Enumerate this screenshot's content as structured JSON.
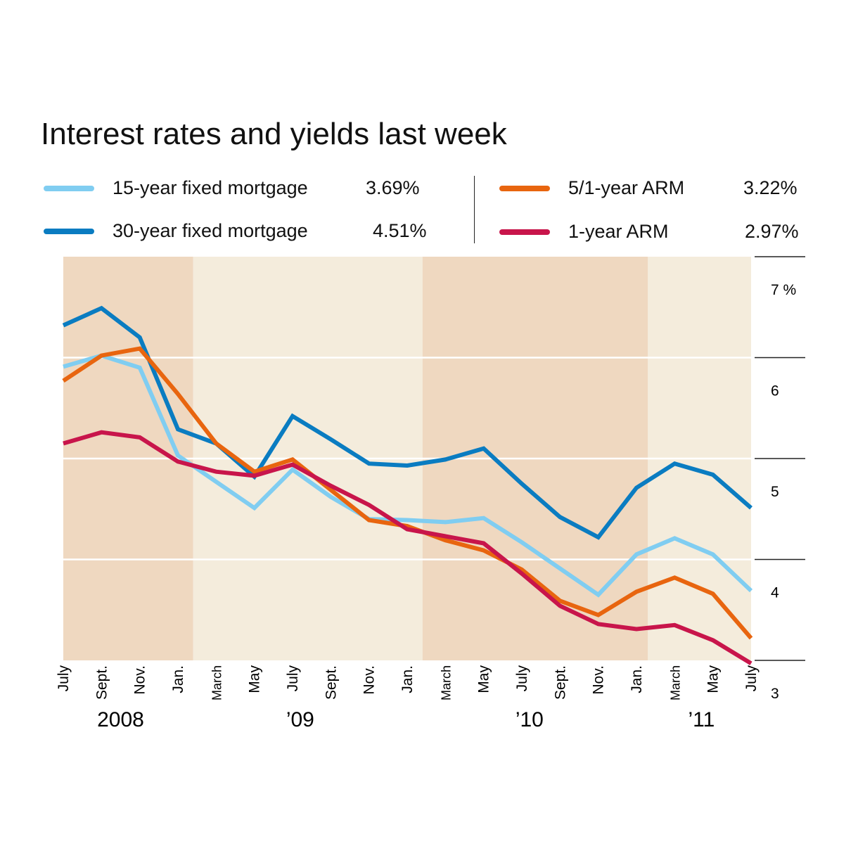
{
  "chart_data": {
    "type": "line",
    "title": "Interest rates and yields last week",
    "xlabel": "",
    "ylabel": "",
    "ylim": [
      3,
      7
    ],
    "y_ticks": [
      "7 %",
      "6",
      "5",
      "4",
      "3"
    ],
    "y_tick_values": [
      7,
      6,
      5,
      4,
      3
    ],
    "grid": true,
    "x_tick_labels": [
      "July",
      "Sept.",
      "Nov.",
      "Jan.",
      "March",
      "May",
      "July",
      "Sept.",
      "Nov.",
      "Jan.",
      "March",
      "May",
      "July",
      "Sept.",
      "Nov.",
      "Jan.",
      "March",
      "May",
      "July"
    ],
    "year_labels": [
      {
        "label": "2008",
        "index": 1.5
      },
      {
        "label": "’09",
        "index": 6.2
      },
      {
        "label": "’10",
        "index": 12.2
      },
      {
        "label": "’11",
        "index": 16.7
      }
    ],
    "shaded_bands": [
      {
        "from": 0,
        "to": 3.4,
        "shade": "dark"
      },
      {
        "from": 3.4,
        "to": 9.4,
        "shade": "light"
      },
      {
        "from": 9.4,
        "to": 15.3,
        "shade": "dark"
      },
      {
        "from": 15.3,
        "to": 18,
        "shade": "light"
      }
    ],
    "series": [
      {
        "name": "15-year fixed mortgage",
        "latest": "3.69%",
        "color": "#80cdf1",
        "values": [
          5.91,
          6.02,
          5.9,
          5.03,
          4.77,
          4.51,
          4.89,
          4.62,
          4.4,
          4.39,
          4.37,
          4.41,
          4.17,
          3.91,
          3.65,
          4.05,
          4.21,
          4.05,
          3.69
        ]
      },
      {
        "name": "30-year fixed mortgage",
        "latest": "4.51%",
        "color": "#0a7cc1",
        "values": [
          6.32,
          6.49,
          6.2,
          5.29,
          5.15,
          4.82,
          5.42,
          5.19,
          4.95,
          4.93,
          4.99,
          5.1,
          4.75,
          4.42,
          4.22,
          4.71,
          4.95,
          4.84,
          4.51
        ]
      },
      {
        "name": "5/1-year ARM",
        "latest": "3.22%",
        "color": "#e8650f",
        "values": [
          5.77,
          6.02,
          6.09,
          5.64,
          5.15,
          4.87,
          4.99,
          4.69,
          4.39,
          4.33,
          4.19,
          4.09,
          3.9,
          3.59,
          3.45,
          3.68,
          3.82,
          3.66,
          3.22
        ]
      },
      {
        "name": "1-year ARM",
        "latest": "2.97%",
        "color": "#c8154b",
        "values": [
          5.15,
          5.26,
          5.21,
          4.97,
          4.87,
          4.83,
          4.94,
          4.73,
          4.54,
          4.3,
          4.23,
          4.16,
          3.86,
          3.54,
          3.36,
          3.31,
          3.35,
          3.2,
          2.97
        ]
      }
    ],
    "legend_placement": "top"
  },
  "colors": {
    "band_dark": "#efd8c0",
    "band_light": "#f4ecdc"
  }
}
